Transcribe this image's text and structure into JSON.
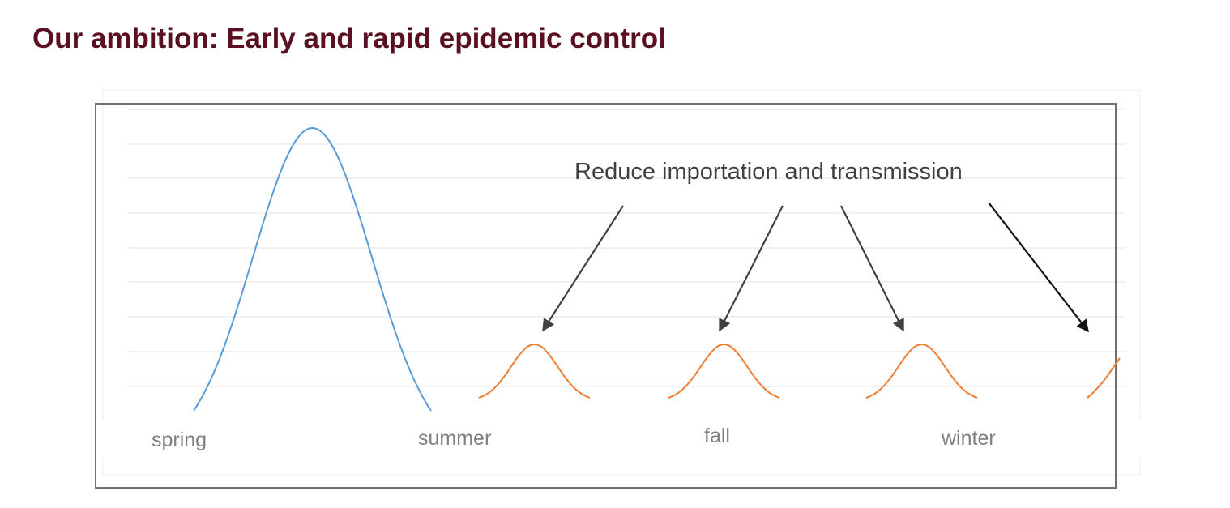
{
  "title": "Our ambition: Early and rapid epidemic control",
  "annotation": "Reduce importation and transmission",
  "season_labels": [
    "spring",
    "summer",
    "fall",
    "winter"
  ],
  "colors": {
    "title": "#5a1020",
    "large_wave": "#5b9bd5",
    "small_waves": "#ed7d31",
    "arrows": "#404040",
    "season_text": "#7f7f7f",
    "gridlines": "#e3e3e3"
  }
}
